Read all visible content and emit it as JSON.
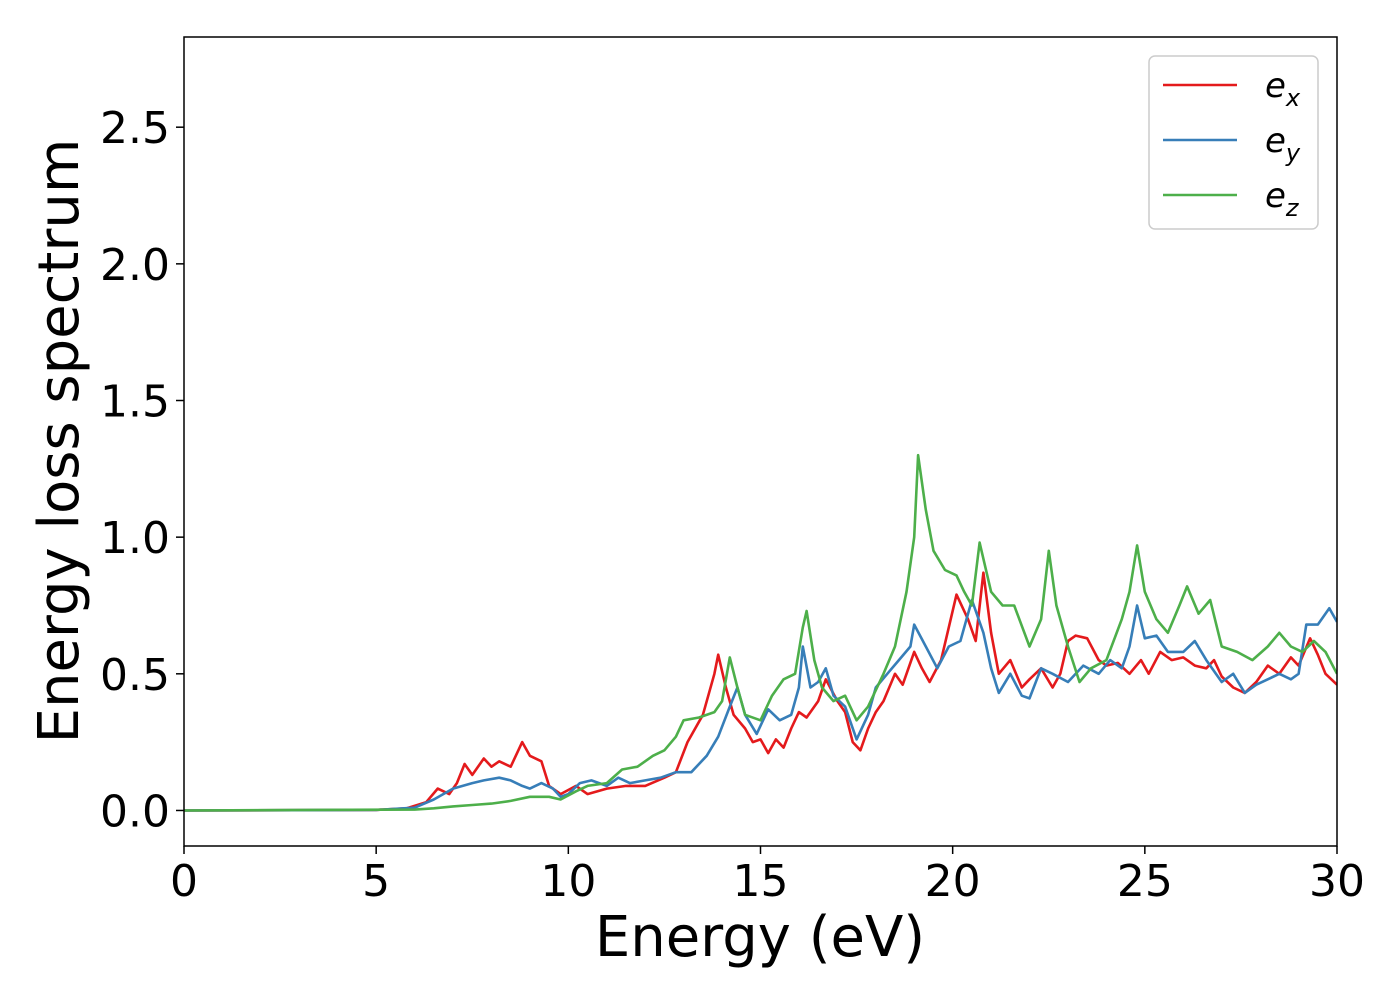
{
  "chart_data": {
    "type": "line",
    "title": "",
    "xlabel": "Energy (eV)",
    "ylabel": "Energy loss spectrum",
    "xlim": [
      0,
      30
    ],
    "ylim": [
      -0.13,
      2.83
    ],
    "xticks": [
      0,
      5,
      10,
      15,
      20,
      25,
      30
    ],
    "xtick_labels": [
      "0",
      "5",
      "10",
      "15",
      "20",
      "25",
      "30"
    ],
    "yticks": [
      0.0,
      0.5,
      1.0,
      1.5,
      2.0,
      2.5
    ],
    "ytick_labels": [
      "0.0",
      "0.5",
      "1.0",
      "1.5",
      "2.0",
      "2.5"
    ],
    "grid": false,
    "legend_position": "top-right",
    "series": [
      {
        "name": "e_x",
        "label_main": "e",
        "label_sub": "x",
        "color": "#e41a1c",
        "points": [
          [
            0,
            0
          ],
          [
            5,
            0.002
          ],
          [
            5.8,
            0.008
          ],
          [
            6.3,
            0.03
          ],
          [
            6.6,
            0.08
          ],
          [
            6.9,
            0.06
          ],
          [
            7.1,
            0.1
          ],
          [
            7.3,
            0.17
          ],
          [
            7.5,
            0.13
          ],
          [
            7.8,
            0.19
          ],
          [
            8.0,
            0.16
          ],
          [
            8.2,
            0.18
          ],
          [
            8.5,
            0.16
          ],
          [
            8.8,
            0.25
          ],
          [
            9.0,
            0.2
          ],
          [
            9.3,
            0.18
          ],
          [
            9.5,
            0.09
          ],
          [
            9.8,
            0.06
          ],
          [
            10.2,
            0.09
          ],
          [
            10.5,
            0.06
          ],
          [
            11.0,
            0.08
          ],
          [
            11.5,
            0.09
          ],
          [
            12.0,
            0.09
          ],
          [
            12.5,
            0.12
          ],
          [
            12.8,
            0.14
          ],
          [
            13.1,
            0.25
          ],
          [
            13.5,
            0.35
          ],
          [
            13.8,
            0.5
          ],
          [
            13.9,
            0.57
          ],
          [
            14.1,
            0.45
          ],
          [
            14.3,
            0.35
          ],
          [
            14.6,
            0.3
          ],
          [
            14.8,
            0.25
          ],
          [
            15.0,
            0.26
          ],
          [
            15.2,
            0.21
          ],
          [
            15.4,
            0.26
          ],
          [
            15.6,
            0.23
          ],
          [
            15.8,
            0.3
          ],
          [
            16.0,
            0.36
          ],
          [
            16.2,
            0.34
          ],
          [
            16.5,
            0.4
          ],
          [
            16.7,
            0.48
          ],
          [
            17.0,
            0.4
          ],
          [
            17.2,
            0.36
          ],
          [
            17.4,
            0.25
          ],
          [
            17.6,
            0.22
          ],
          [
            17.8,
            0.3
          ],
          [
            18.0,
            0.36
          ],
          [
            18.2,
            0.4
          ],
          [
            18.5,
            0.5
          ],
          [
            18.7,
            0.46
          ],
          [
            19.0,
            0.58
          ],
          [
            19.2,
            0.52
          ],
          [
            19.4,
            0.47
          ],
          [
            19.7,
            0.55
          ],
          [
            20.1,
            0.79
          ],
          [
            20.4,
            0.7
          ],
          [
            20.6,
            0.62
          ],
          [
            20.8,
            0.87
          ],
          [
            21.0,
            0.65
          ],
          [
            21.2,
            0.5
          ],
          [
            21.5,
            0.55
          ],
          [
            21.8,
            0.45
          ],
          [
            22.0,
            0.48
          ],
          [
            22.3,
            0.52
          ],
          [
            22.6,
            0.45
          ],
          [
            22.8,
            0.5
          ],
          [
            23.0,
            0.62
          ],
          [
            23.2,
            0.64
          ],
          [
            23.5,
            0.63
          ],
          [
            23.8,
            0.55
          ],
          [
            24.0,
            0.53
          ],
          [
            24.3,
            0.54
          ],
          [
            24.6,
            0.5
          ],
          [
            24.9,
            0.55
          ],
          [
            25.1,
            0.5
          ],
          [
            25.4,
            0.58
          ],
          [
            25.7,
            0.55
          ],
          [
            26.0,
            0.56
          ],
          [
            26.3,
            0.53
          ],
          [
            26.6,
            0.52
          ],
          [
            26.8,
            0.55
          ],
          [
            27.0,
            0.49
          ],
          [
            27.3,
            0.45
          ],
          [
            27.6,
            0.43
          ],
          [
            27.9,
            0.47
          ],
          [
            28.2,
            0.53
          ],
          [
            28.5,
            0.5
          ],
          [
            28.8,
            0.56
          ],
          [
            29.0,
            0.53
          ],
          [
            29.3,
            0.63
          ],
          [
            29.5,
            0.57
          ],
          [
            29.7,
            0.5
          ],
          [
            30.0,
            0.46
          ]
        ]
      },
      {
        "name": "e_y",
        "label_main": "e",
        "label_sub": "y",
        "color": "#377eb8",
        "points": [
          [
            0,
            0
          ],
          [
            5,
            0.002
          ],
          [
            6.0,
            0.01
          ],
          [
            6.5,
            0.04
          ],
          [
            7.0,
            0.08
          ],
          [
            7.5,
            0.1
          ],
          [
            7.8,
            0.11
          ],
          [
            8.2,
            0.12
          ],
          [
            8.5,
            0.11
          ],
          [
            8.8,
            0.09
          ],
          [
            9.0,
            0.08
          ],
          [
            9.3,
            0.1
          ],
          [
            9.6,
            0.08
          ],
          [
            9.8,
            0.05
          ],
          [
            10.0,
            0.06
          ],
          [
            10.3,
            0.1
          ],
          [
            10.6,
            0.11
          ],
          [
            11.0,
            0.09
          ],
          [
            11.3,
            0.12
          ],
          [
            11.6,
            0.1
          ],
          [
            12.0,
            0.11
          ],
          [
            12.4,
            0.12
          ],
          [
            12.8,
            0.14
          ],
          [
            13.2,
            0.14
          ],
          [
            13.6,
            0.2
          ],
          [
            13.9,
            0.27
          ],
          [
            14.2,
            0.38
          ],
          [
            14.4,
            0.45
          ],
          [
            14.6,
            0.35
          ],
          [
            14.9,
            0.28
          ],
          [
            15.2,
            0.37
          ],
          [
            15.5,
            0.33
          ],
          [
            15.8,
            0.35
          ],
          [
            16.0,
            0.45
          ],
          [
            16.1,
            0.6
          ],
          [
            16.3,
            0.45
          ],
          [
            16.5,
            0.47
          ],
          [
            16.7,
            0.52
          ],
          [
            16.9,
            0.42
          ],
          [
            17.2,
            0.38
          ],
          [
            17.5,
            0.26
          ],
          [
            17.8,
            0.35
          ],
          [
            18.0,
            0.45
          ],
          [
            18.3,
            0.5
          ],
          [
            18.6,
            0.55
          ],
          [
            18.9,
            0.6
          ],
          [
            19.0,
            0.68
          ],
          [
            19.3,
            0.6
          ],
          [
            19.6,
            0.52
          ],
          [
            19.9,
            0.6
          ],
          [
            20.2,
            0.62
          ],
          [
            20.5,
            0.77
          ],
          [
            20.8,
            0.65
          ],
          [
            21.0,
            0.52
          ],
          [
            21.2,
            0.43
          ],
          [
            21.5,
            0.5
          ],
          [
            21.8,
            0.42
          ],
          [
            22.0,
            0.41
          ],
          [
            22.3,
            0.52
          ],
          [
            22.6,
            0.5
          ],
          [
            23.0,
            0.47
          ],
          [
            23.4,
            0.53
          ],
          [
            23.8,
            0.5
          ],
          [
            24.1,
            0.55
          ],
          [
            24.4,
            0.52
          ],
          [
            24.6,
            0.6
          ],
          [
            24.8,
            0.75
          ],
          [
            25.0,
            0.63
          ],
          [
            25.3,
            0.64
          ],
          [
            25.6,
            0.58
          ],
          [
            26.0,
            0.58
          ],
          [
            26.3,
            0.62
          ],
          [
            26.6,
            0.55
          ],
          [
            27.0,
            0.47
          ],
          [
            27.3,
            0.5
          ],
          [
            27.6,
            0.43
          ],
          [
            27.9,
            0.46
          ],
          [
            28.2,
            0.48
          ],
          [
            28.5,
            0.5
          ],
          [
            28.8,
            0.48
          ],
          [
            29.0,
            0.5
          ],
          [
            29.2,
            0.68
          ],
          [
            29.5,
            0.68
          ],
          [
            29.8,
            0.74
          ],
          [
            30.0,
            0.69
          ]
        ]
      },
      {
        "name": "e_z",
        "label_main": "e",
        "label_sub": "z",
        "color": "#4daf4a",
        "points": [
          [
            0,
            0
          ],
          [
            6.0,
            0.003
          ],
          [
            6.5,
            0.008
          ],
          [
            7.0,
            0.015
          ],
          [
            7.5,
            0.02
          ],
          [
            8.0,
            0.025
          ],
          [
            8.5,
            0.035
          ],
          [
            9.0,
            0.05
          ],
          [
            9.5,
            0.05
          ],
          [
            9.8,
            0.04
          ],
          [
            10.2,
            0.07
          ],
          [
            10.5,
            0.09
          ],
          [
            11.0,
            0.1
          ],
          [
            11.4,
            0.15
          ],
          [
            11.8,
            0.16
          ],
          [
            12.2,
            0.2
          ],
          [
            12.5,
            0.22
          ],
          [
            12.8,
            0.27
          ],
          [
            13.0,
            0.33
          ],
          [
            13.4,
            0.34
          ],
          [
            13.8,
            0.36
          ],
          [
            14.0,
            0.4
          ],
          [
            14.2,
            0.56
          ],
          [
            14.4,
            0.45
          ],
          [
            14.6,
            0.35
          ],
          [
            15.0,
            0.33
          ],
          [
            15.3,
            0.42
          ],
          [
            15.6,
            0.48
          ],
          [
            15.9,
            0.5
          ],
          [
            16.1,
            0.67
          ],
          [
            16.2,
            0.73
          ],
          [
            16.4,
            0.55
          ],
          [
            16.6,
            0.45
          ],
          [
            16.9,
            0.4
          ],
          [
            17.2,
            0.42
          ],
          [
            17.5,
            0.33
          ],
          [
            17.8,
            0.38
          ],
          [
            18.2,
            0.5
          ],
          [
            18.5,
            0.6
          ],
          [
            18.8,
            0.8
          ],
          [
            19.0,
            1.0
          ],
          [
            19.1,
            1.3
          ],
          [
            19.3,
            1.1
          ],
          [
            19.5,
            0.95
          ],
          [
            19.8,
            0.88
          ],
          [
            20.1,
            0.86
          ],
          [
            20.3,
            0.8
          ],
          [
            20.5,
            0.75
          ],
          [
            20.7,
            0.98
          ],
          [
            21.0,
            0.8
          ],
          [
            21.3,
            0.75
          ],
          [
            21.6,
            0.75
          ],
          [
            22.0,
            0.6
          ],
          [
            22.3,
            0.7
          ],
          [
            22.5,
            0.95
          ],
          [
            22.7,
            0.75
          ],
          [
            23.0,
            0.6
          ],
          [
            23.3,
            0.47
          ],
          [
            23.6,
            0.52
          ],
          [
            24.0,
            0.55
          ],
          [
            24.4,
            0.7
          ],
          [
            24.6,
            0.8
          ],
          [
            24.8,
            0.97
          ],
          [
            25.0,
            0.8
          ],
          [
            25.3,
            0.7
          ],
          [
            25.6,
            0.65
          ],
          [
            25.9,
            0.75
          ],
          [
            26.1,
            0.82
          ],
          [
            26.4,
            0.72
          ],
          [
            26.7,
            0.77
          ],
          [
            27.0,
            0.6
          ],
          [
            27.4,
            0.58
          ],
          [
            27.8,
            0.55
          ],
          [
            28.2,
            0.6
          ],
          [
            28.5,
            0.65
          ],
          [
            28.8,
            0.6
          ],
          [
            29.1,
            0.58
          ],
          [
            29.4,
            0.62
          ],
          [
            29.7,
            0.58
          ],
          [
            30.0,
            0.5
          ]
        ]
      }
    ]
  }
}
